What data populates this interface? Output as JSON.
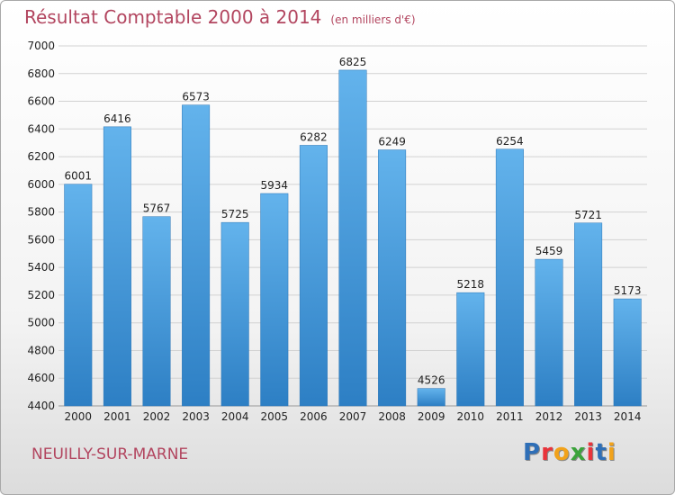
{
  "header": {
    "title": "Résultat Comptable 2000 à 2014",
    "subtitle": "(en milliers d'€)"
  },
  "footer": {
    "place": "NEUILLY-SUR-MARNE"
  },
  "logo": {
    "text": "Proxiti",
    "colors": [
      "#2f6fb7",
      "#e9343b",
      "#f1a21b",
      "#3aa33a",
      "#e9343b",
      "#2f6fb7",
      "#f1a21b"
    ]
  },
  "colors": {
    "bar_top": "#63b3ec",
    "bar_bottom": "#2d7fc4",
    "grid": "#d2d2d2",
    "title": "#b2455f"
  },
  "chart_data": {
    "type": "bar",
    "title": "Résultat Comptable 2000 à 2014",
    "subtitle": "(en milliers d'€)",
    "xlabel": "",
    "ylabel": "",
    "categories": [
      "2000",
      "2001",
      "2002",
      "2003",
      "2004",
      "2005",
      "2006",
      "2007",
      "2008",
      "2009",
      "2010",
      "2011",
      "2012",
      "2013",
      "2014"
    ],
    "values": [
      6001,
      6416,
      5767,
      6573,
      5725,
      5934,
      6282,
      6825,
      6249,
      4526,
      5218,
      6254,
      5459,
      5721,
      5173
    ],
    "data_labels": [
      "6001",
      "6416",
      "5767",
      "6573",
      "5725",
      "5934",
      "6282",
      "6825",
      "6249",
      "4526",
      "5218",
      "6254",
      "5459",
      "5721",
      "5173"
    ],
    "ylim": [
      4400,
      7000
    ],
    "y_ticks": [
      "4400",
      "4600",
      "4800",
      "5000",
      "5200",
      "5400",
      "5600",
      "5800",
      "6000",
      "6200",
      "6400",
      "6600",
      "6800",
      "7000"
    ],
    "grid": true,
    "legend": "none"
  }
}
